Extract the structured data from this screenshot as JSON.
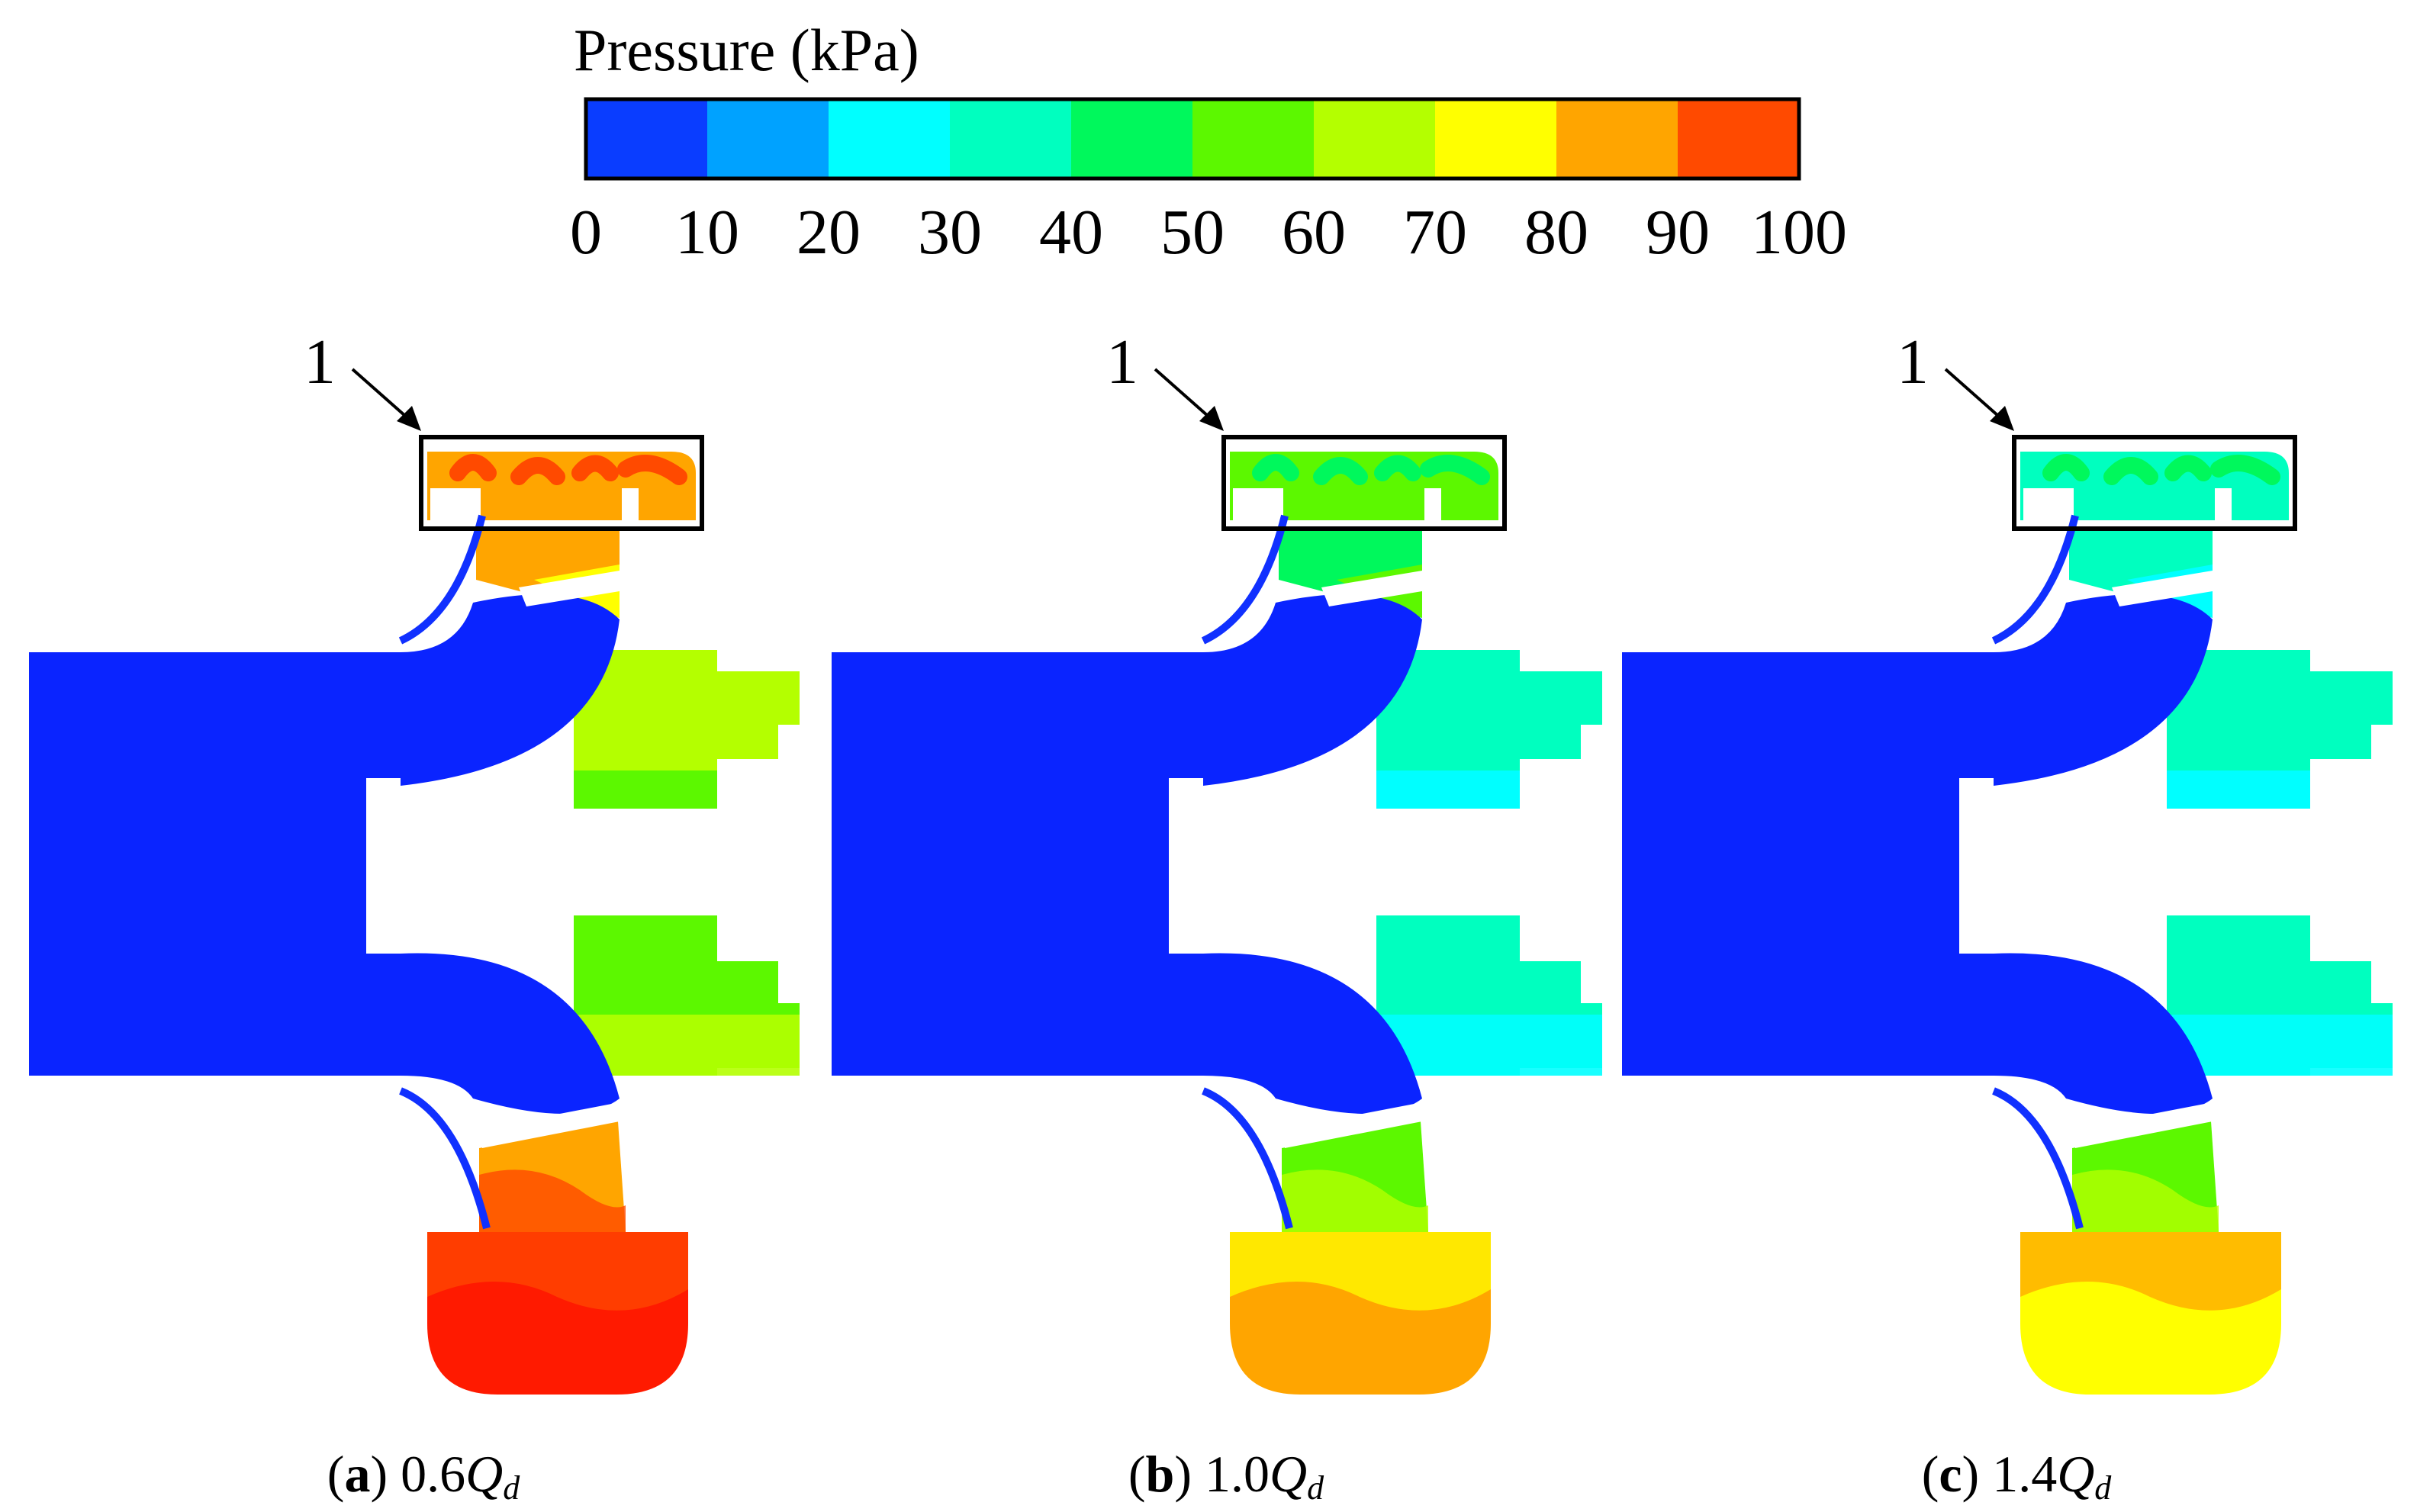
{
  "legend": {
    "title": "Pressure (kPa)",
    "ticks": [
      "0",
      "10",
      "20",
      "30",
      "40",
      "50",
      "60",
      "70",
      "80",
      "90",
      "100"
    ],
    "colors": [
      "#0a3dff",
      "#00a2ff",
      "#00ffff",
      "#00ffbf",
      "#00f85c",
      "#5cf800",
      "#b4ff00",
      "#ffff00",
      "#ffa500",
      "#ff4a00"
    ]
  },
  "callout_label": "1",
  "panels": [
    {
      "letter": "a",
      "flow": "0.6",
      "q": "Q",
      "sub": "d",
      "colors": {
        "top_chamber": "#ffa500",
        "top_chamber_hot": "#ff4a00",
        "top_passage": "#ffa500",
        "top_passage_tip": "#ffff00",
        "right_upper": "#b4ff00",
        "right_upper_low": "#5cf800",
        "right_lower": "#5cf800",
        "right_lower_low": "#b4ff00",
        "bottom_passage": "#ffa500",
        "bottom_passage_hot": "#ff4a00",
        "bottom_chamber": "#ff1a00",
        "bottom_chamber_edge": "#ff4a00"
      }
    },
    {
      "letter": "b",
      "flow": "1.0",
      "q": "Q",
      "sub": "d",
      "colors": {
        "top_chamber": "#5cf800",
        "top_chamber_hot": "#00f85c",
        "top_passage": "#00f85c",
        "top_passage_tip": "#5cf800",
        "right_upper": "#00ffbf",
        "right_upper_low": "#00ffff",
        "right_lower": "#00ffbf",
        "right_lower_low": "#00ffff",
        "bottom_passage": "#5cf800",
        "bottom_passage_hot": "#b4ff00",
        "bottom_chamber": "#ffa500",
        "bottom_chamber_edge": "#ffff00"
      }
    },
    {
      "letter": "c",
      "flow": "1.4",
      "q": "Q",
      "sub": "d",
      "colors": {
        "top_chamber": "#00ffbf",
        "top_chamber_hot": "#00f85c",
        "top_passage": "#00ffbf",
        "top_passage_tip": "#00ffff",
        "right_upper": "#00ffbf",
        "right_upper_low": "#00ffff",
        "right_lower": "#00ffbf",
        "right_lower_low": "#00ffff",
        "bottom_passage": "#5cf800",
        "bottom_passage_hot": "#b4ff00",
        "bottom_chamber": "#ffff00",
        "bottom_chamber_edge": "#ffa500"
      }
    }
  ]
}
